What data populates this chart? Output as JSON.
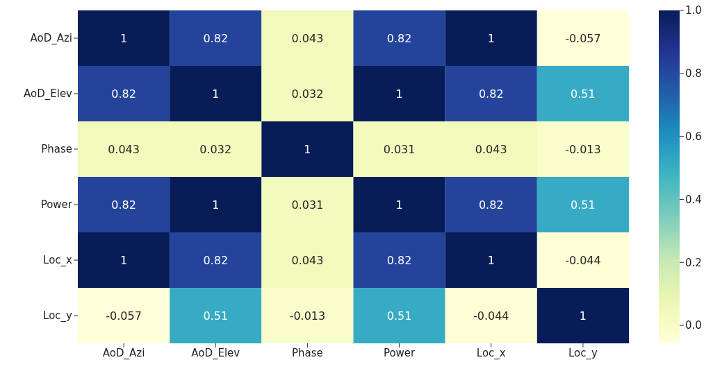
{
  "chart_data": {
    "type": "heatmap",
    "categories": [
      "AoD_Azi",
      "AoD_Elev",
      "Phase",
      "Power",
      "Loc_x",
      "Loc_y"
    ],
    "y_categories": [
      "AoD_Azi",
      "AoD_Elev",
      "Phase",
      "Power",
      "Loc_x",
      "Loc_y"
    ],
    "cells": [
      [
        1,
        0.82,
        0.043,
        0.82,
        1,
        -0.057
      ],
      [
        0.82,
        1,
        0.032,
        1,
        0.82,
        0.51
      ],
      [
        0.043,
        0.032,
        1,
        0.031,
        0.043,
        -0.013
      ],
      [
        0.82,
        1,
        0.031,
        1,
        0.82,
        0.51
      ],
      [
        1,
        0.82,
        0.043,
        0.82,
        1,
        -0.044
      ],
      [
        -0.057,
        0.51,
        -0.013,
        0.51,
        -0.044,
        1
      ]
    ],
    "data_labels": true,
    "clim": [
      -0.057,
      1
    ],
    "cticks": [
      {
        "value": 0,
        "label": "0.0"
      },
      {
        "value": 0.2,
        "label": "0.2"
      },
      {
        "value": 0.4,
        "label": "0.4"
      },
      {
        "value": 0.6,
        "label": "0.6"
      },
      {
        "value": 0.8,
        "label": "0.8"
      },
      {
        "value": 1,
        "label": "1.0"
      }
    ]
  }
}
